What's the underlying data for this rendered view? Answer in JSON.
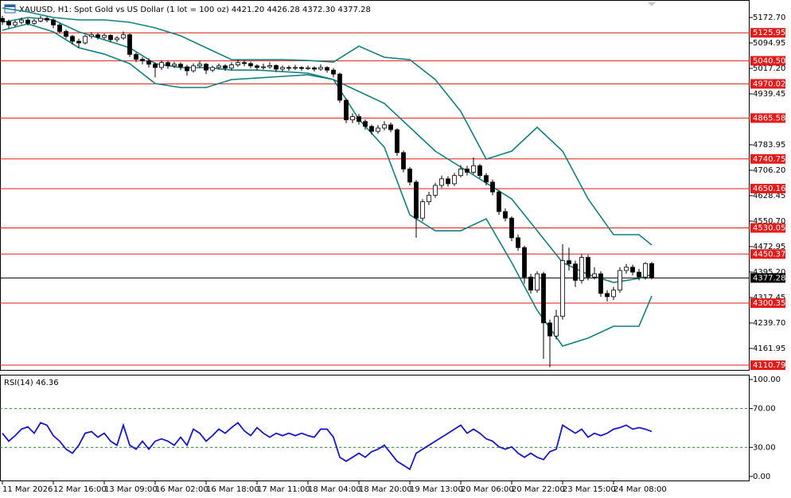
{
  "chart_data": [
    {
      "type": "candlestick",
      "title": "XAUUSD, H1:  Spot Gold vs US Dollar (1 lot = 100 oz)  4421.20 4426.28 4372.30 4377.28",
      "open": [
        5170,
        5160,
        5150,
        5158,
        5165,
        5155,
        5162,
        5170,
        5165,
        5150,
        5130,
        5115,
        5100,
        5095,
        5115,
        5120,
        5112,
        5118,
        5105,
        5110,
        5120,
        5060,
        5045,
        5040,
        5030,
        5020,
        5035,
        5025,
        5030,
        5022,
        5010,
        5025,
        5030,
        5012,
        5020,
        5025,
        5018,
        5028,
        5035,
        5032,
        5025,
        5020,
        5022,
        5026,
        5015,
        5020,
        5018,
        5020,
        5017,
        5019,
        5015,
        5020,
        5012,
        5000,
        4920,
        4860,
        4870,
        4855,
        4840,
        4825,
        4835,
        4845,
        4830,
        4760,
        4710,
        4670,
        4560,
        4610,
        4630,
        4660,
        4680,
        4665,
        4690,
        4710,
        4700,
        4720,
        4690,
        4670,
        4640,
        4580,
        4560,
        4500,
        4470,
        4380,
        4340,
        4390,
        4240,
        4200,
        4260,
        4430,
        4420,
        4370,
        4440,
        4380,
        4390,
        4330,
        4320,
        4340,
        4400,
        4410,
        4395,
        4380,
        4421.2
      ],
      "high": [
        5178,
        5166,
        5164,
        5172,
        5170,
        5168,
        5178,
        5176,
        5170,
        5156,
        5136,
        5120,
        5108,
        5120,
        5128,
        5126,
        5124,
        5122,
        5116,
        5130,
        5124,
        5066,
        5052,
        5048,
        5036,
        5042,
        5040,
        5038,
        5036,
        5028,
        5032,
        5040,
        5034,
        5026,
        5032,
        5030,
        5036,
        5044,
        5042,
        5038,
        5030,
        5032,
        5036,
        5030,
        5026,
        5026,
        5028,
        5024,
        5026,
        5024,
        5030,
        5024,
        5018,
        5004,
        4926,
        4880,
        4878,
        4862,
        4846,
        4844,
        4856,
        4852,
        4834,
        4766,
        4716,
        4676,
        4618,
        4640,
        4668,
        4690,
        4688,
        4698,
        4722,
        4720,
        4745,
        4726,
        4698,
        4678,
        4646,
        4590,
        4566,
        4510,
        4476,
        4390,
        4398,
        4396,
        4250,
        4280,
        4480,
        4470,
        4430,
        4450,
        4448,
        4410,
        4398,
        4340,
        4350,
        4410,
        4420,
        4418,
        4405,
        4426,
        4426.28
      ],
      "low": [
        5150,
        5140,
        5144,
        5152,
        5148,
        5150,
        5158,
        5158,
        5140,
        5124,
        5108,
        5090,
        5080,
        5090,
        5108,
        5106,
        5106,
        5098,
        5098,
        5104,
        5052,
        5036,
        5030,
        5020,
        4990,
        5012,
        5016,
        5018,
        5012,
        4995,
        5004,
        5018,
        5000,
        5006,
        5014,
        5010,
        5012,
        5022,
        5024,
        5018,
        5012,
        5014,
        5016,
        5006,
        5008,
        5010,
        5012,
        5010,
        5012,
        5008,
        5010,
        5004,
        4990,
        4912,
        4850,
        4850,
        4846,
        4830,
        4815,
        4818,
        4828,
        4822,
        4750,
        4700,
        4660,
        4500,
        4550,
        4600,
        4622,
        4652,
        4656,
        4658,
        4684,
        4690,
        4694,
        4682,
        4660,
        4630,
        4570,
        4550,
        4490,
        4460,
        4360,
        4330,
        4332,
        4130,
        4105,
        4190,
        4250,
        4400,
        4350,
        4360,
        4370,
        4372,
        4320,
        4305,
        4310,
        4332,
        4390,
        4385,
        4370,
        4372,
        4372.3
      ],
      "close": [
        5160,
        5150,
        5158,
        5165,
        5155,
        5162,
        5170,
        5165,
        5150,
        5130,
        5115,
        5100,
        5095,
        5115,
        5120,
        5112,
        5118,
        5105,
        5110,
        5120,
        5060,
        5045,
        5040,
        5030,
        5020,
        5035,
        5025,
        5030,
        5022,
        5010,
        5025,
        5030,
        5012,
        5020,
        5025,
        5018,
        5028,
        5035,
        5032,
        5025,
        5020,
        5022,
        5026,
        5015,
        5020,
        5018,
        5020,
        5017,
        5019,
        5015,
        5020,
        5012,
        5000,
        4920,
        4860,
        4870,
        4855,
        4840,
        4825,
        4835,
        4845,
        4830,
        4760,
        4710,
        4670,
        4560,
        4610,
        4630,
        4660,
        4680,
        4665,
        4690,
        4710,
        4700,
        4720,
        4690,
        4670,
        4640,
        4580,
        4560,
        4500,
        4470,
        4380,
        4340,
        4390,
        4240,
        4200,
        4260,
        4430,
        4420,
        4370,
        4440,
        4380,
        4390,
        4330,
        4320,
        4340,
        4400,
        4410,
        4395,
        4380,
        4421.2,
        4377.28
      ],
      "up_color": "#ffffff",
      "down_color": "#000000",
      "outline_color": "#000000",
      "bands": {
        "color": "#12807f",
        "x": [
          0,
          4,
          8,
          12,
          16,
          20,
          24,
          28,
          32,
          36,
          40,
          44,
          48,
          52,
          56,
          60,
          64,
          68,
          72,
          76,
          80,
          84,
          88,
          92,
          96,
          100,
          102
        ],
        "upper": [
          5201.9,
          5189.7,
          5172.7,
          5165.4,
          5165.4,
          5158.1,
          5141.1,
          5116.8,
          5080.4,
          5043.9,
          5043.9,
          5043.9,
          5041.5,
          5036.6,
          5085.2,
          5051.2,
          5043.9,
          4983.2,
          4886.0,
          4740.2,
          4764.5,
          4837.4,
          4764.5,
          4618.7,
          4509.4,
          4509.4,
          4477.8
        ],
        "middle": [
          5158.1,
          5172.7,
          5165.4,
          5128.9,
          5104.7,
          5080.4,
          5031.8,
          5019.6,
          5019.6,
          5012.3,
          5012.3,
          5007.5,
          5002.6,
          4983.2,
          4946.7,
          4910.3,
          4837.4,
          4764.5,
          4715.9,
          4667.3,
          4618.7,
          4521.5,
          4424.3,
          4387.9,
          4363.6,
          4375.8,
          4387.9
        ],
        "lower": [
          5133.8,
          5153.2,
          5128.9,
          5080.4,
          5060.9,
          5031.8,
          4971.0,
          4958.9,
          4958.9,
          4983.2,
          4988.0,
          4992.9,
          4997.8,
          4983.2,
          4861.7,
          4776.6,
          4570.1,
          4521.5,
          4521.5,
          4558.0,
          4424.3,
          4278.6,
          4169.2,
          4193.5,
          4229.7,
          4229.7,
          4322.1
        ]
      },
      "levels": [
        5125.95,
        {
          "value": 5040.5,
          "label": "5040.50"
        },
        4970.02,
        4865.58,
        4740.75,
        4650.16,
        4530.05,
        4450.37,
        4300.35,
        4110.79
      ],
      "level_color": "#e31b1b",
      "price_line": {
        "value": 4377.28,
        "label": "4377.28"
      },
      "price_line_color": "#000000",
      "xlim": [
        -0.375,
        117.375
      ],
      "xticks": [
        {
          "value": 0,
          "label": "11 Mar 2026"
        },
        {
          "value": 8,
          "label": "12 Mar 16:00"
        },
        {
          "value": 16,
          "label": "13 Mar 09:00"
        },
        {
          "value": 24,
          "label": "16 Mar 02:00"
        },
        {
          "value": 32,
          "label": "16 Mar 18:00"
        },
        {
          "value": 40,
          "label": "17 Mar 11:00"
        },
        {
          "value": 48,
          "label": "18 Mar 04:00"
        },
        {
          "value": 56,
          "label": "18 Mar 20:00"
        },
        {
          "value": 64,
          "label": "19 Mar 13:00"
        },
        {
          "value": 72,
          "label": "20 Mar 06:00"
        },
        {
          "value": 80,
          "label": "20 Mar 22:00"
        },
        {
          "value": 88,
          "label": "23 Mar 15:00"
        },
        {
          "value": 96,
          "label": "24 Mar 08:00"
        }
      ],
      "ylim": [
        4096.35,
        5226.15
      ],
      "yticks": [
        {
          "value": 5172.7,
          "label": "5172.70"
        },
        5094.95,
        {
          "value": 5017.2,
          "label": "5017.20"
        },
        4939.45,
        4783.95,
        {
          "value": 4706.2,
          "label": "4706.20"
        },
        4628.45,
        {
          "value": 4550.7,
          "label": "4550.70"
        },
        4472.95,
        {
          "value": 4395.2,
          "label": "4395.20"
        },
        4317.45,
        {
          "value": 4239.7,
          "label": "4239.70"
        },
        4161.95
      ]
    },
    {
      "type": "line",
      "title": "RSI(14) 46.36",
      "color": "#1818c8",
      "values": [
        44.6,
        36.4,
        42.1,
        48.8,
        51.2,
        44.6,
        55.4,
        52.9,
        42.1,
        36.4,
        28.1,
        24.0,
        32.2,
        44.6,
        46.3,
        40.5,
        44.6,
        36.4,
        32.2,
        52.9,
        32.2,
        28.1,
        36.4,
        28.1,
        36.4,
        38.8,
        36.4,
        32.2,
        40.5,
        32.2,
        48.8,
        44.6,
        36.4,
        42.1,
        48.8,
        44.6,
        50.4,
        55.4,
        47.1,
        42.1,
        50.4,
        44.6,
        40.5,
        44.6,
        42.1,
        44.6,
        42.1,
        44.6,
        42.1,
        40.5,
        48.8,
        48.8,
        40.5,
        19.8,
        15.7,
        19.8,
        24.0,
        19.8,
        25.6,
        28.1,
        32.2,
        24.0,
        15.7,
        11.6,
        7.4,
        24.0,
        28.1,
        32.2,
        36.4,
        40.5,
        44.6,
        48.8,
        52.9,
        44.6,
        48.8,
        44.6,
        38.8,
        36.4,
        30.6,
        28.1,
        30.6,
        24.0,
        19.8,
        24.0,
        19.8,
        17.4,
        25.6,
        28.1,
        52.9,
        48.8,
        44.6,
        48.8,
        40.5,
        44.6,
        42.1,
        44.6,
        48.8,
        50.4,
        52.9,
        48.8,
        50.4,
        48.8,
        46.36
      ],
      "levels": [
        70,
        30
      ],
      "level_color": "#2e8b2e",
      "ylim": [
        -4.96,
        104.13
      ],
      "yticks": [
        {
          "value": 100,
          "label": "100.00"
        },
        {
          "value": 70,
          "label": "70.00"
        },
        {
          "value": 30,
          "label": "30.00"
        },
        {
          "value": 0,
          "label": "0.00"
        }
      ]
    }
  ]
}
